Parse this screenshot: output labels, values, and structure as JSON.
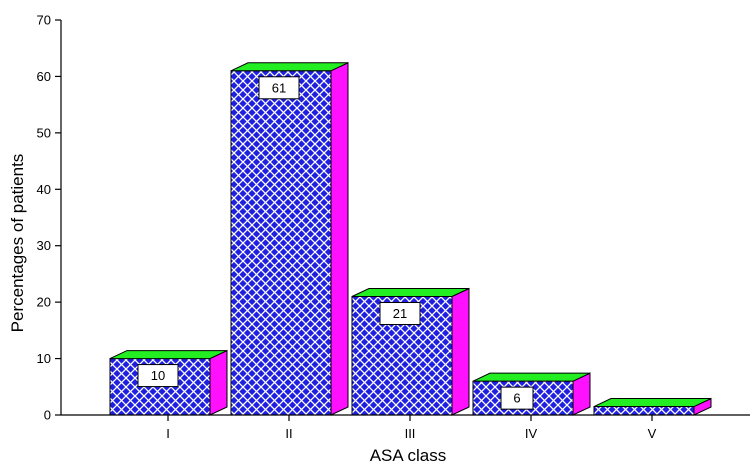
{
  "chart_data": {
    "type": "bar",
    "categories": [
      "I",
      "II",
      "III",
      "IV",
      "V"
    ],
    "values": [
      10,
      61,
      21,
      6,
      1.5
    ],
    "data_labels": [
      "10",
      "61",
      "21",
      "6",
      ""
    ],
    "xlabel": "ASA class",
    "ylabel": "Percentages of patients",
    "ylim": [
      0,
      70
    ],
    "yticks": [
      0,
      10,
      20,
      30,
      40,
      50,
      60,
      70
    ],
    "grid": false,
    "style": "3d",
    "colors": {
      "front": "#1f1fe0",
      "hatch": "#ffffff",
      "top": "#22ee22",
      "side": "#ff11ff"
    }
  }
}
